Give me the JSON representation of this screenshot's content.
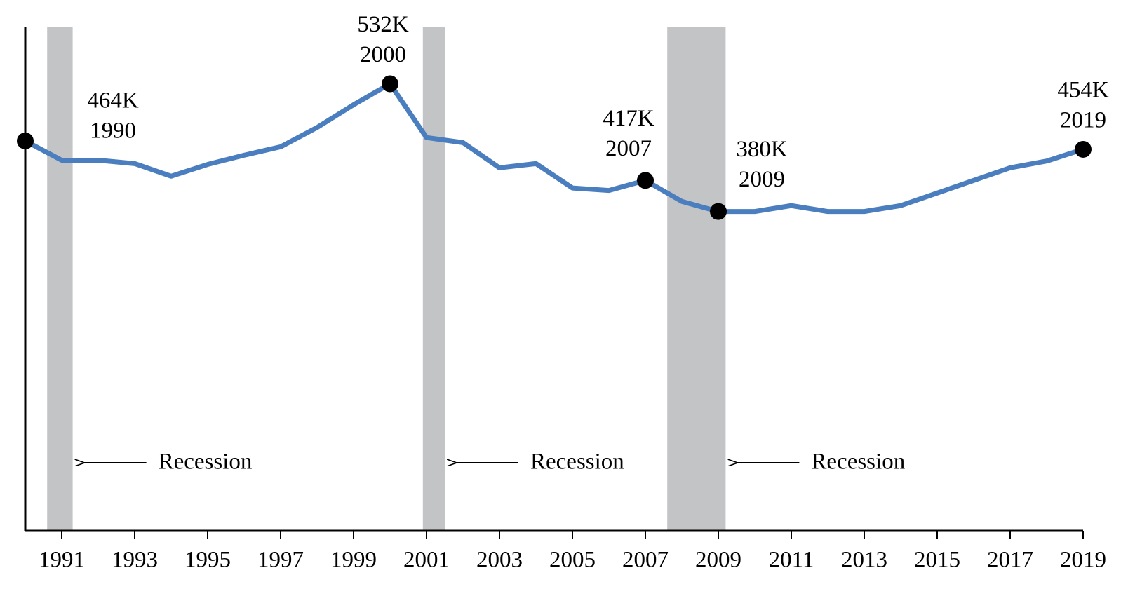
{
  "chart_data": {
    "type": "line",
    "x": [
      1990,
      1991,
      1992,
      1993,
      1994,
      1995,
      1996,
      1997,
      1998,
      1999,
      2000,
      2001,
      2002,
      2003,
      2004,
      2005,
      2006,
      2007,
      2008,
      2009,
      2010,
      2011,
      2012,
      2013,
      2014,
      2015,
      2016,
      2017,
      2018,
      2019
    ],
    "series": [
      {
        "color": "#4a7ebf",
        "values": [
          464,
          441,
          441,
          437,
          422,
          436,
          447,
          457,
          480,
          507,
          532,
          468,
          462,
          432,
          437,
          408,
          405,
          417,
          392,
          380,
          380,
          387,
          380,
          380,
          387,
          402,
          417,
          432,
          440,
          454
        ]
      }
    ],
    "xlim": [
      1990,
      2019
    ],
    "xticks": [
      1991,
      1993,
      1995,
      1997,
      1999,
      2001,
      2003,
      2005,
      2007,
      2009,
      2011,
      2013,
      2015,
      2017,
      2019
    ],
    "ylim": [
      0,
      600
    ],
    "annotations": [
      {
        "x": 1990,
        "label": "464K"
      },
      {
        "x": 2000,
        "label": "532K"
      },
      {
        "x": 2007,
        "label": "417K"
      },
      {
        "x": 2009,
        "label": "380K"
      },
      {
        "x": 2019,
        "label": "454K"
      }
    ],
    "recessions": [
      {
        "start": 1990.6,
        "end": 1991.3,
        "label": "Recession"
      },
      {
        "start": 2000.9,
        "end": 2001.5,
        "label": "Recession"
      },
      {
        "start": 2007.6,
        "end": 2009.2,
        "label": "Recession"
      }
    ]
  }
}
